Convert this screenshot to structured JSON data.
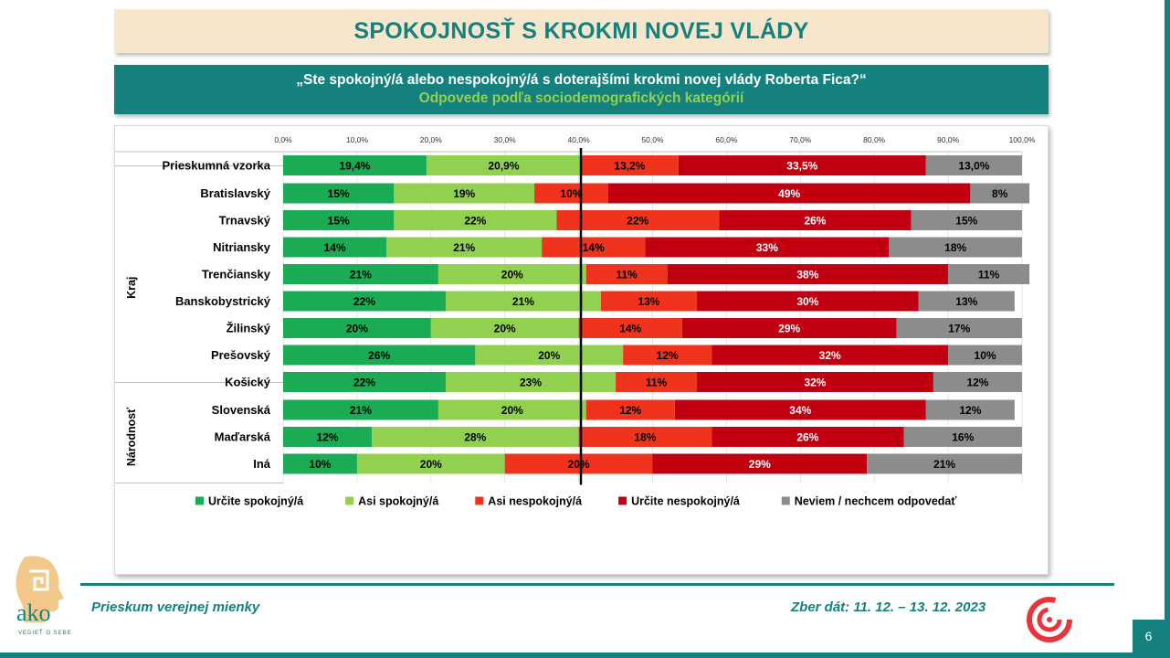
{
  "header": {
    "title": "SPOKOJNOSŤ S KROKMI NOVEJ VLÁDY",
    "question": "„Ste spokojný/á alebo nespokojný/á s doterajšími krokmi novej vlády Roberta Fica?“",
    "subtitle": "Odpovede podľa sociodemografických kategórií"
  },
  "footer": {
    "left": "Prieskum verejnej mienky",
    "right": "Zber dát: 11. 12. – 13. 12. 2023",
    "page": "6",
    "logo_tagline": "VEDIEŤ O SEBE",
    "logo_word": "ako"
  },
  "chart_data": {
    "type": "bar",
    "orientation": "horizontal",
    "stacked": true,
    "xlim": [
      0,
      100
    ],
    "x_ticks": [
      "0,0%",
      "10,0%",
      "20,0%",
      "30,0%",
      "40,0%",
      "50,0%",
      "60,0%",
      "70,0%",
      "80,0%",
      "90,0%",
      "100,0%"
    ],
    "grid": true,
    "reference_line": 40.3,
    "legend_position": "bottom",
    "series": [
      {
        "name": "Určite spokojný/á",
        "color": "#1aab54"
      },
      {
        "name": "Asi spokojný/á",
        "color": "#92d050"
      },
      {
        "name": "Asi nespokojný/á",
        "color": "#f0331d"
      },
      {
        "name": "Určite nespokojný/á",
        "color": "#c00010"
      },
      {
        "name": "Neviem / nechcem odpovedať",
        "color": "#8c8c8c"
      }
    ],
    "groups": [
      {
        "name": "",
        "rows": [
          {
            "label": "Prieskumná vzorka",
            "values": [
              19.4,
              20.9,
              13.2,
              33.5,
              13.0
            ],
            "labels": [
              "19,4%",
              "20,9%",
              "13,2%",
              "33,5%",
              "13,0%"
            ]
          }
        ]
      },
      {
        "name": "Kraj",
        "rows": [
          {
            "label": "Bratislavský",
            "values": [
              15,
              19,
              10,
              49,
              8
            ],
            "labels": [
              "15%",
              "19%",
              "10%",
              "49%",
              "8%"
            ]
          },
          {
            "label": "Trnavský",
            "values": [
              15,
              22,
              22,
              26,
              15
            ],
            "labels": [
              "15%",
              "22%",
              "22%",
              "26%",
              "15%"
            ]
          },
          {
            "label": "Nitriansky",
            "values": [
              14,
              21,
              14,
              33,
              18
            ],
            "labels": [
              "14%",
              "21%",
              "14%",
              "33%",
              "18%"
            ]
          },
          {
            "label": "Trenčiansky",
            "values": [
              21,
              20,
              11,
              38,
              11
            ],
            "labels": [
              "21%",
              "20%",
              "11%",
              "38%",
              "11%"
            ]
          },
          {
            "label": "Banskobystrický",
            "values": [
              22,
              21,
              13,
              30,
              13
            ],
            "labels": [
              "22%",
              "21%",
              "13%",
              "30%",
              "13%"
            ]
          },
          {
            "label": "Žilinský",
            "values": [
              20,
              20,
              14,
              29,
              17
            ],
            "labels": [
              "20%",
              "20%",
              "14%",
              "29%",
              "17%"
            ]
          },
          {
            "label": "Prešovský",
            "values": [
              26,
              20,
              12,
              32,
              10
            ],
            "labels": [
              "26%",
              "20%",
              "12%",
              "32%",
              "10%"
            ]
          },
          {
            "label": "Košický",
            "values": [
              22,
              23,
              11,
              32,
              12
            ],
            "labels": [
              "22%",
              "23%",
              "11%",
              "32%",
              "12%"
            ]
          }
        ]
      },
      {
        "name": "Národnosť",
        "rows": [
          {
            "label": "Slovenská",
            "values": [
              21,
              20,
              12,
              34,
              12
            ],
            "labels": [
              "21%",
              "20%",
              "12%",
              "34%",
              "12%"
            ]
          },
          {
            "label": "Maďarská",
            "values": [
              12,
              28,
              18,
              26,
              16
            ],
            "labels": [
              "12%",
              "28%",
              "18%",
              "26%",
              "16%"
            ]
          },
          {
            "label": "Iná",
            "values": [
              10,
              20,
              20,
              29,
              21
            ],
            "labels": [
              "10%",
              "20%",
              "20%",
              "29%",
              "21%"
            ]
          }
        ]
      }
    ]
  }
}
